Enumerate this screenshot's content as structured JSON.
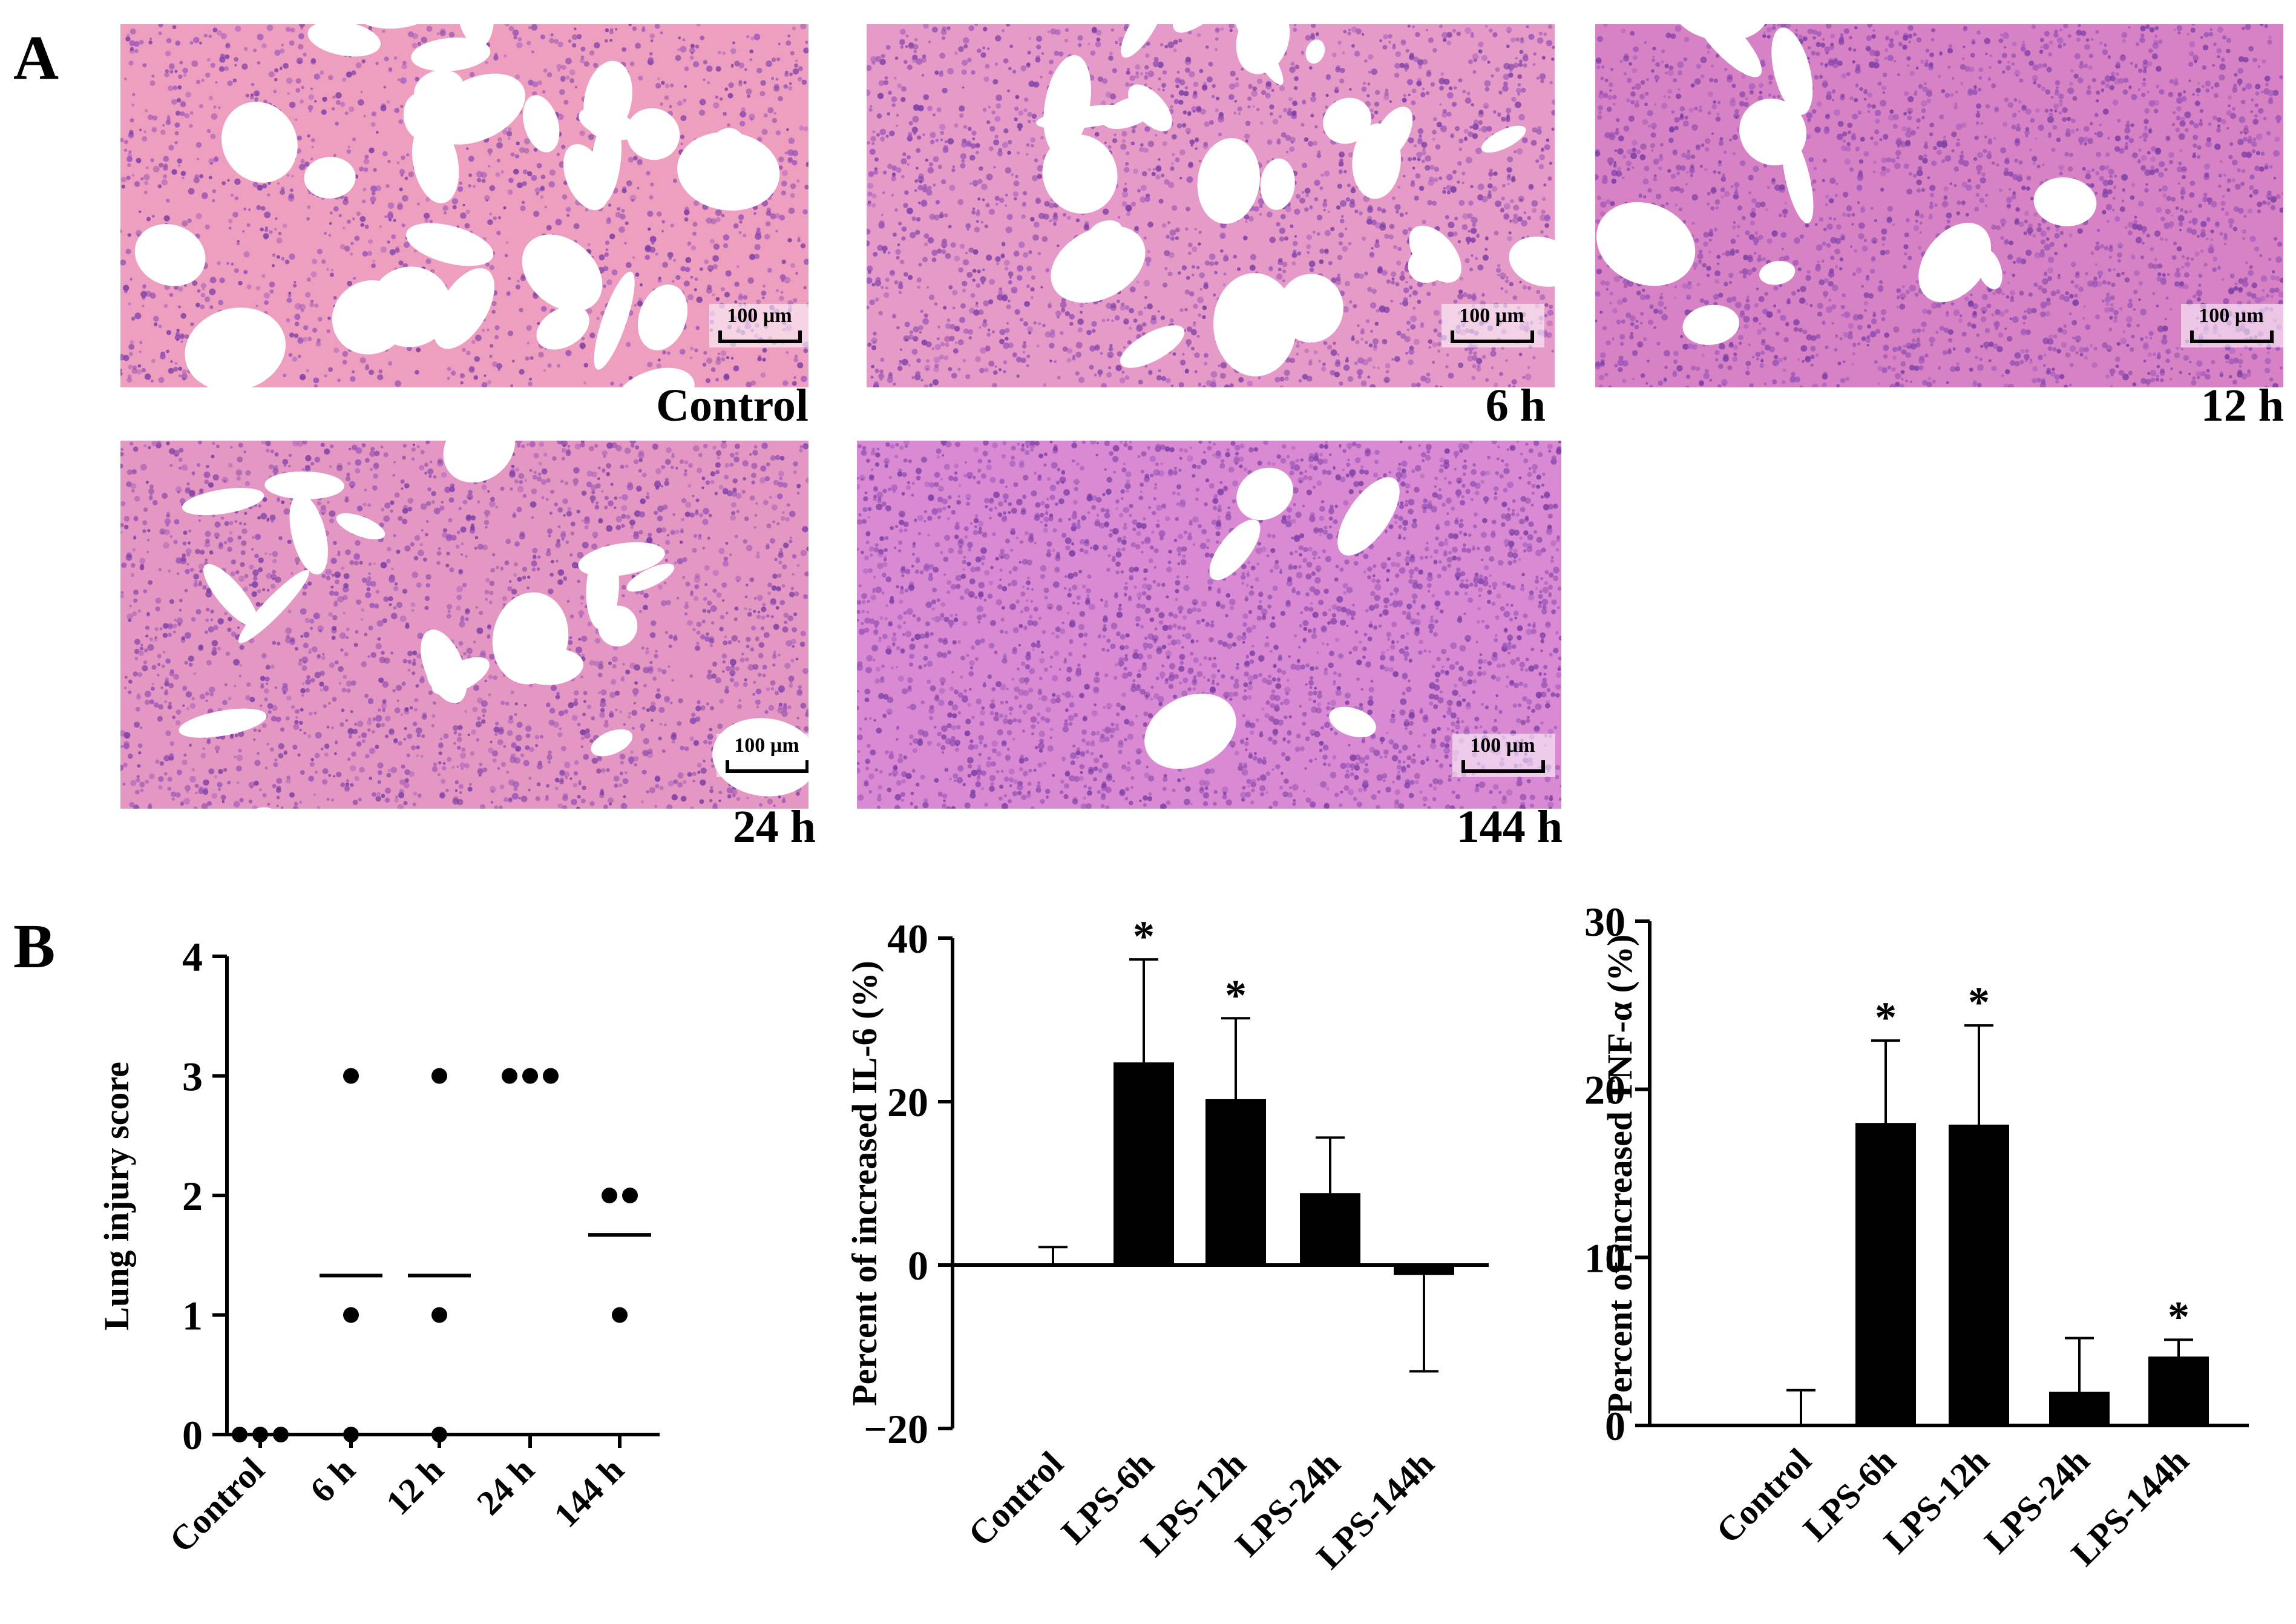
{
  "panel_a": {
    "letter": "A",
    "scale_bar_text": "100 µm",
    "images": [
      {
        "label": "Control",
        "tint": "#ee9fc0",
        "density": 0.35
      },
      {
        "label": "6 h",
        "tint": "#e59ac8",
        "density": 0.6
      },
      {
        "label": "12 h",
        "tint": "#d882c6",
        "density": 0.75
      },
      {
        "label": "24 h",
        "tint": "#e497c2",
        "density": 0.65
      },
      {
        "label": "144 h",
        "tint": "#d98ad2",
        "density": 0.95
      }
    ]
  },
  "panel_b": {
    "letter": "B"
  },
  "chart_data": [
    {
      "type": "scatter",
      "ylabel": "Lung injury score",
      "ylim": [
        0,
        4
      ],
      "yticks": [
        "0",
        "1",
        "2",
        "3",
        "4"
      ],
      "categories": [
        "Control",
        "6 h",
        "12 h",
        "24 h",
        "144 h"
      ],
      "points": [
        [
          0,
          0,
          0
        ],
        [
          0,
          1,
          3
        ],
        [
          0,
          1,
          3
        ],
        [
          3,
          3,
          3
        ],
        [
          1,
          2,
          2
        ]
      ],
      "means": [
        0,
        1.33,
        1.33,
        3,
        1.67
      ]
    },
    {
      "type": "bar",
      "ylabel": "Percent of increased IL-6 (%)",
      "ylim": [
        -20,
        40
      ],
      "yticks": [
        "−20",
        "0",
        "20",
        "40"
      ],
      "categories": [
        "Control",
        "LPS-6h",
        "LPS-12h",
        "LPS-24h",
        "LPS-144h"
      ],
      "values": [
        0,
        24.8,
        20.3,
        8.8,
        -1.2
      ],
      "errors": [
        2.2,
        12.6,
        9.9,
        6.8,
        11.8
      ],
      "significance": [
        "",
        "*",
        "*",
        "",
        ""
      ]
    },
    {
      "type": "bar",
      "ylabel": "Percent of increased TNF-α (%)",
      "ylim": [
        0,
        30
      ],
      "yticks": [
        "0",
        "10",
        "20",
        "30"
      ],
      "categories": [
        "Control",
        "LPS-6h",
        "LPS-12h",
        "LPS-24h",
        "LPS-144h"
      ],
      "values": [
        0,
        18,
        17.9,
        2,
        4.1
      ],
      "errors": [
        2.1,
        4.9,
        5.9,
        3.2,
        1.0
      ],
      "significance": [
        "",
        "*",
        "*",
        "",
        "*"
      ]
    }
  ]
}
